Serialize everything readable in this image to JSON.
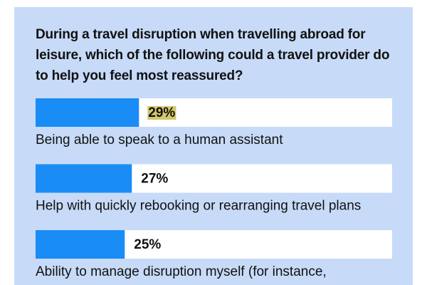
{
  "chart_data": {
    "type": "bar",
    "title": "During a travel disruption when travelling abroad for leisure, which of the following could a travel provider do to help you feel most reassured?",
    "categories": [
      "Being able to speak to a human assistant",
      "Help with quickly rebooking or rearranging travel plans",
      "Ability to manage disruption myself (for instance,"
    ],
    "values": [
      29,
      27,
      25
    ],
    "value_labels": [
      "29%",
      "27%",
      "25%"
    ],
    "color": "#1a8cf5",
    "xlim": [
      0,
      100
    ]
  }
}
